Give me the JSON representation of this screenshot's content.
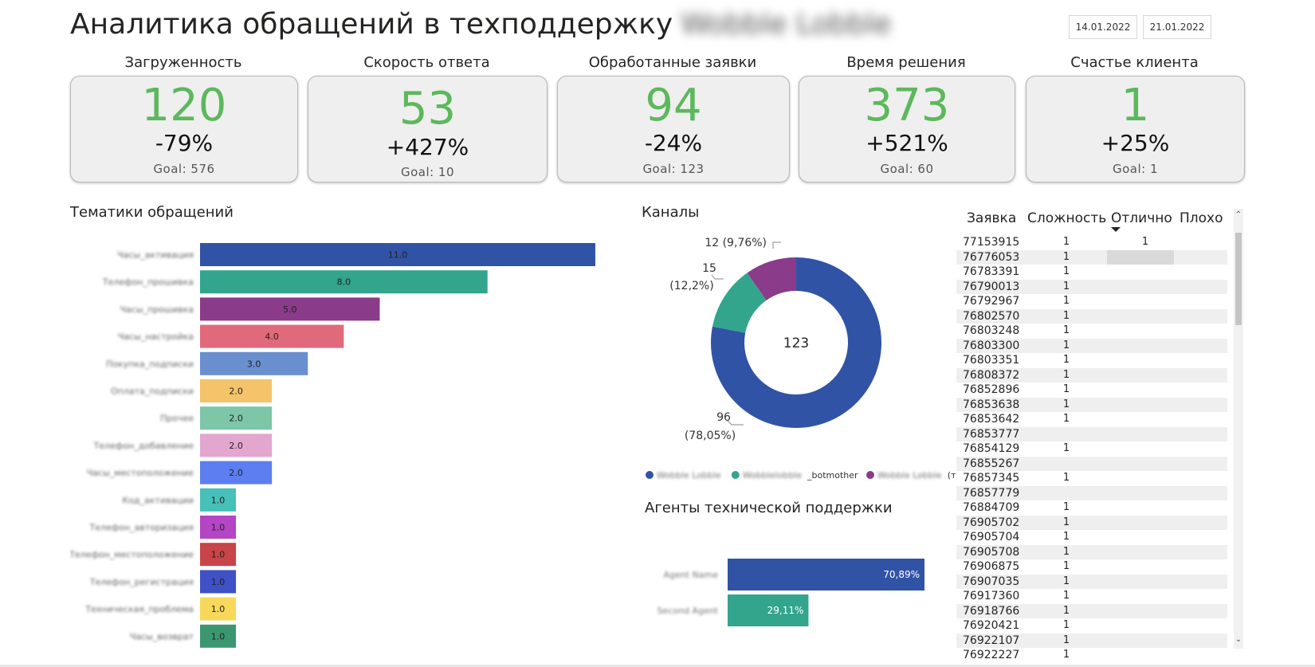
{
  "header": {
    "title": "Аналитика обращений в техподдержку",
    "title_blurred_suffix": "Wobble Lobble",
    "date_from": "14.01.2022",
    "date_to": "21.01.2022"
  },
  "kpis": [
    {
      "label": "Загруженность",
      "value": "120",
      "delta": "-79%",
      "goal": "Goal: 576"
    },
    {
      "label": "Скорость ответа",
      "value": "53",
      "delta": "+427%",
      "goal": "Goal: 10"
    },
    {
      "label": "Обработанные заявки",
      "value": "94",
      "delta": "-24%",
      "goal": "Goal: 123"
    },
    {
      "label": "Время решения",
      "value": "373",
      "delta": "+521%",
      "goal": "Goal: 60"
    },
    {
      "label": "Счастье клиента",
      "value": "1",
      "delta": "+25%",
      "goal": "Goal: 1"
    }
  ],
  "topics_chart": {
    "title": "Тематики обращений",
    "categories": [
      "Часы_активация",
      "Телефон_прошивка",
      "Часы_прошивка",
      "Часы_настройка",
      "Покупка_подписки",
      "Оплата_подписки",
      "Прочее",
      "Телефон_добавление",
      "Часы_местоположение",
      "Код_активации",
      "Телефон_авторизация",
      "Телефон_местоположение",
      "Телефон_регистрация",
      "Техническая_проблема",
      "Часы_возврат"
    ],
    "values": [
      11.0,
      8.0,
      5.0,
      4.0,
      3.0,
      2.0,
      2.0,
      2.0,
      2.0,
      1.0,
      1.0,
      1.0,
      1.0,
      1.0,
      1.0
    ],
    "labels": [
      "11.0",
      "8.0",
      "5.0",
      "4.0",
      "3.0",
      "2.0",
      "2.0",
      "2.0",
      "2.0",
      "1.0",
      "1.0",
      "1.0",
      "1.0",
      "1.0",
      "1.0"
    ],
    "colors": [
      "#3153a6",
      "#33a58c",
      "#8a3b8a",
      "#e06a7b",
      "#6a8fce",
      "#f4c36a",
      "#7dc6a7",
      "#e3a6cf",
      "#5c7ef0",
      "#46c0b8",
      "#b445c5",
      "#c74448",
      "#4050c5",
      "#f7d85a",
      "#3c9770"
    ]
  },
  "channels_chart": {
    "title": "Каналы",
    "center_label": "123",
    "values": [
      96,
      15,
      12
    ],
    "colors": [
      "#3153a6",
      "#33a58c",
      "#8a3b8a"
    ],
    "slice_labels": [
      [
        "96",
        "(78,05%)"
      ],
      [
        "15",
        "(12,2%)"
      ],
      [
        "12 (9,76%)"
      ]
    ],
    "legend": [
      {
        "blurred": "Wobble Lobble",
        "suffix": "",
        "color": "#3153a6"
      },
      {
        "blurred": "Wobblelobble",
        "suffix": "_botmother",
        "color": "#33a58c"
      },
      {
        "blurred": "Wobble Lobble",
        "suffix": "(телефон)",
        "color": "#8a3b8a"
      }
    ]
  },
  "agents_chart": {
    "title": "Агенты технической поддержки",
    "names": [
      "Agent Name",
      "Second Agent"
    ],
    "values": [
      70.89,
      29.11
    ],
    "labels": [
      "70,89%",
      "29,11%"
    ],
    "colors": [
      "#3153a6",
      "#33a58c"
    ]
  },
  "chart_data": [
    {
      "type": "bar",
      "title": "Тематики обращений",
      "categories": [
        "Часы_активация",
        "Телефон_прошивка",
        "Часы_прошивка",
        "Часы_настройка",
        "Покупка_подписки",
        "Оплата_подписки",
        "Прочее",
        "Телефон_добавление",
        "Часы_местоположение",
        "Код_активации",
        "Телефон_авторизация",
        "Телефон_местоположение",
        "Телефон_регистрация",
        "Техническая_проблема",
        "Часы_возврат"
      ],
      "values": [
        11,
        8,
        5,
        4,
        3,
        2,
        2,
        2,
        2,
        1,
        1,
        1,
        1,
        1,
        1
      ]
    },
    {
      "type": "pie",
      "title": "Каналы",
      "values": [
        96,
        15,
        12
      ],
      "percent": [
        78.05,
        12.2,
        9.76
      ]
    },
    {
      "type": "bar",
      "title": "Агенты технической поддержки",
      "values": [
        70.89,
        29.11
      ]
    }
  ],
  "table": {
    "headers": {
      "id": "Заявка",
      "complexity": "Сложность",
      "excellent": "Отлично",
      "bad": "Плохо"
    },
    "rows": [
      {
        "id": "77153915",
        "c": "1",
        "e": "1"
      },
      {
        "id": "76776053",
        "c": "1",
        "e": ""
      },
      {
        "id": "76783391",
        "c": "1",
        "e": ""
      },
      {
        "id": "76790013",
        "c": "1",
        "e": ""
      },
      {
        "id": "76792967",
        "c": "1",
        "e": ""
      },
      {
        "id": "76802570",
        "c": "1",
        "e": ""
      },
      {
        "id": "76803248",
        "c": "1",
        "e": ""
      },
      {
        "id": "76803300",
        "c": "1",
        "e": ""
      },
      {
        "id": "76803351",
        "c": "1",
        "e": ""
      },
      {
        "id": "76808372",
        "c": "1",
        "e": ""
      },
      {
        "id": "76852896",
        "c": "1",
        "e": ""
      },
      {
        "id": "76853638",
        "c": "1",
        "e": ""
      },
      {
        "id": "76853642",
        "c": "1",
        "e": ""
      },
      {
        "id": "76853777",
        "c": "",
        "e": ""
      },
      {
        "id": "76854129",
        "c": "1",
        "e": ""
      },
      {
        "id": "76855267",
        "c": "",
        "e": ""
      },
      {
        "id": "76857345",
        "c": "1",
        "e": ""
      },
      {
        "id": "76857779",
        "c": "",
        "e": ""
      },
      {
        "id": "76884709",
        "c": "1",
        "e": ""
      },
      {
        "id": "76905702",
        "c": "1",
        "e": ""
      },
      {
        "id": "76905704",
        "c": "1",
        "e": ""
      },
      {
        "id": "76905708",
        "c": "1",
        "e": ""
      },
      {
        "id": "76906875",
        "c": "1",
        "e": ""
      },
      {
        "id": "76907035",
        "c": "1",
        "e": ""
      },
      {
        "id": "76917360",
        "c": "1",
        "e": ""
      },
      {
        "id": "76918766",
        "c": "1",
        "e": ""
      },
      {
        "id": "76920421",
        "c": "1",
        "e": ""
      },
      {
        "id": "76922107",
        "c": "1",
        "e": ""
      },
      {
        "id": "76922227",
        "c": "1",
        "e": ""
      }
    ]
  }
}
